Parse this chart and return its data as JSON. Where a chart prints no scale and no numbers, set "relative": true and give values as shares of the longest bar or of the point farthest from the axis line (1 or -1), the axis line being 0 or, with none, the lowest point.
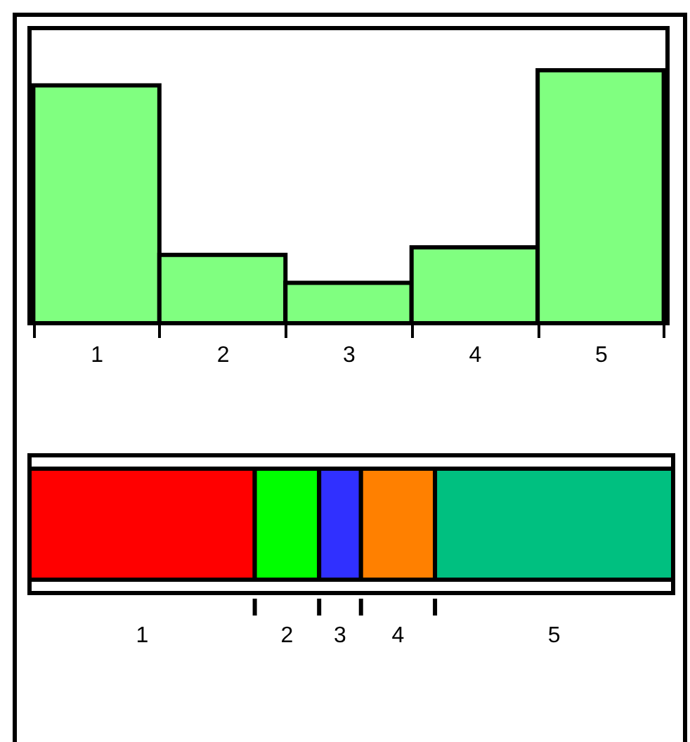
{
  "chart_data": [
    {
      "type": "bar",
      "relative": true,
      "categories": [
        "1",
        "2",
        "3",
        "4",
        "5"
      ],
      "values": [
        0.94,
        0.27,
        0.16,
        0.3,
        1
      ],
      "color": "#80ff80"
    },
    {
      "type": "bar",
      "relative": true,
      "orientation": "horizontal",
      "stacked": true,
      "categories": [
        null
      ],
      "series": [
        {
          "name": "1",
          "color": "#ff0000",
          "values": [
            0.35
          ]
        },
        {
          "name": "2",
          "color": "#00ff00",
          "values": [
            0.1
          ]
        },
        {
          "name": "3",
          "color": "#3030ff",
          "values": [
            0.065
          ]
        },
        {
          "name": "4",
          "color": "#ff8000",
          "values": [
            0.115
          ]
        },
        {
          "name": "5",
          "color": "#00c080",
          "values": [
            0.37
          ]
        }
      ]
    }
  ]
}
